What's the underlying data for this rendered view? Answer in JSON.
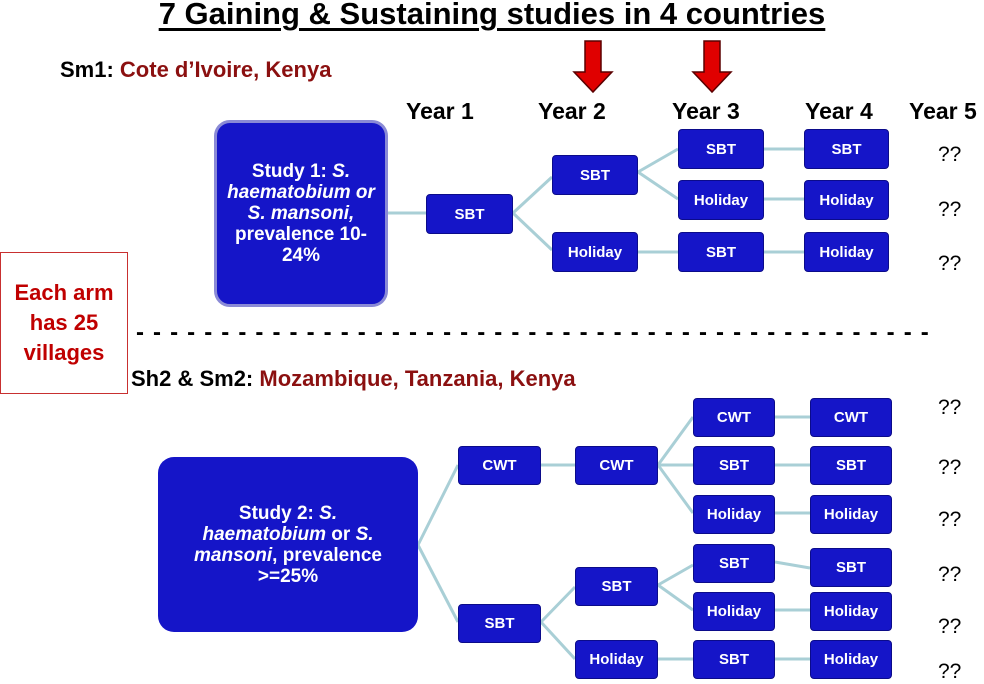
{
  "title": "7 Gaining & Sustaining studies in 4 countries",
  "section1": {
    "code": "Sm1:",
    "countries": "Cote d’Ivoire, Kenya"
  },
  "section2": {
    "code": "Sh2 & Sm2:",
    "countries": "Mozambique, Tanzania, Kenya"
  },
  "years": [
    "Year 1",
    "Year 2",
    "Year 3",
    "Year 4",
    "Year 5"
  ],
  "study1": {
    "lead": "Study 1: ",
    "species": "S. haematobium or S. mansoni,",
    "tail": " prevalence 10-24%"
  },
  "study2": {
    "lead": "Study 2: ",
    "species1": "S. haematobium",
    "mid": " or ",
    "species2": "S. mansoni",
    "tail": ", prevalence >=25%"
  },
  "each_arm": "Each arm has 25 villages",
  "dashes": "- - - - - - - - - - - - - - - - - - - - - - - - - - - - - - - - - - - - - - - - - - - - - - -",
  "arrow_color": "#e00000",
  "box_color": "#1515c8",
  "boxes1": {
    "y1": "SBT",
    "y2a": "SBT",
    "y2b": "Holiday",
    "y3a": "SBT",
    "y3b": "Holiday",
    "y3c": "SBT",
    "y4a": "SBT",
    "y4b": "Holiday",
    "y4c": "Holiday"
  },
  "boxes2": {
    "y1a": "CWT",
    "y1b": "SBT",
    "y2a": "CWT",
    "y2b": "SBT",
    "y2c": "Holiday",
    "y3a": "CWT",
    "y3b": "SBT",
    "y3c": "Holiday",
    "y3d": "SBT",
    "y3e": "Holiday",
    "y3f": "SBT",
    "y4a": "CWT",
    "y4b": "SBT",
    "y4c": "Holiday",
    "y4d": "SBT",
    "y4e": "Holiday",
    "y4f": "Holiday"
  },
  "question_marks": [
    "??",
    "??",
    "??",
    "??",
    "??",
    "??",
    "??",
    "??",
    "??"
  ]
}
